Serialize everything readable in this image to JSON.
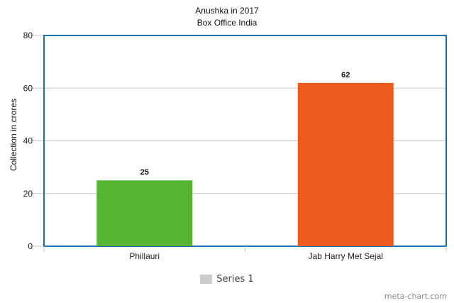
{
  "chart_data": {
    "type": "bar",
    "title": "Anushka in 2017",
    "subtitle": "Box Office India",
    "xlabel": "",
    "ylabel": "Collection in crores",
    "categories": [
      "Phillauri",
      "Jab Harry Met Sejal"
    ],
    "series": [
      {
        "name": "Series 1",
        "values": [
          25,
          62
        ],
        "colors": [
          "#55b533",
          "#ec5a1e"
        ]
      }
    ],
    "ylim": [
      0,
      80
    ],
    "yticks": [
      0,
      20,
      40,
      60,
      80
    ],
    "grid": true,
    "legend": "bottom-center",
    "frame_color": "#1a6fb0",
    "data_labels": [
      "25",
      "62"
    ]
  },
  "credit": "meta-chart.com"
}
